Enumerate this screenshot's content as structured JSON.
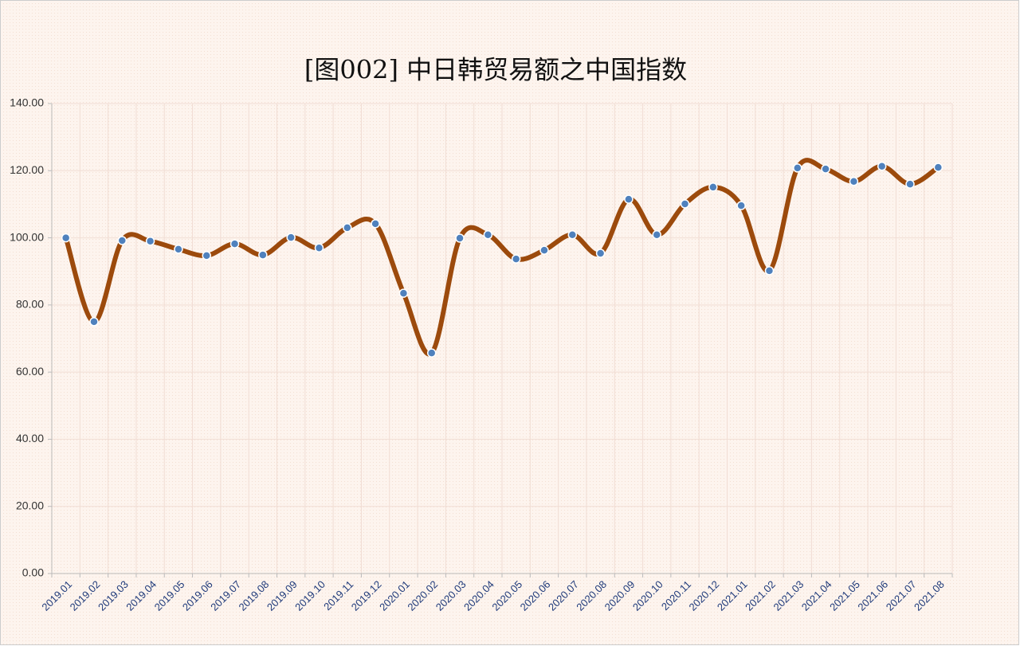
{
  "chart_data": {
    "type": "line",
    "title": "[图002] 中日韩贸易额之中国指数",
    "categories": [
      "2019.01",
      "2019.02",
      "2019.03",
      "2019.04",
      "2019.05",
      "2019.06",
      "2019.07",
      "2019.08",
      "2019.09",
      "2019.10",
      "2019.11",
      "2019.12",
      "2020.01",
      "2020.02",
      "2020.03",
      "2020.04",
      "2020.05",
      "2020.06",
      "2020.07",
      "2020.08",
      "2020.09",
      "2020.10",
      "2020.11",
      "2020.12",
      "2021.01",
      "2021.02",
      "2021.03",
      "2021.04",
      "2021.05",
      "2021.06",
      "2021.07",
      "2021.08"
    ],
    "values": [
      100,
      75,
      99.2,
      99,
      96.6,
      94.7,
      98.2,
      94.9,
      100.1,
      97,
      103,
      104.2,
      83.5,
      65.7,
      99.9,
      100.9,
      93.7,
      96.3,
      100.9,
      95.4,
      111.5,
      100.9,
      110.1,
      115.1,
      109.6,
      90.2,
      120.8,
      120.5,
      116.8,
      121.3,
      116,
      121
    ],
    "color": "#9c4a0c",
    "marker_color": "#4f81bd",
    "ylim": [
      0,
      140
    ],
    "yticks": [
      {
        "value": 0,
        "label": "0.00"
      },
      {
        "value": 20,
        "label": "20.00"
      },
      {
        "value": 40,
        "label": "40.00"
      },
      {
        "value": 60,
        "label": "60.00"
      },
      {
        "value": 80,
        "label": "80.00"
      },
      {
        "value": 100,
        "label": "100.00"
      },
      {
        "value": 120,
        "label": "120.00"
      },
      {
        "value": 140,
        "label": "140.00"
      }
    ],
    "grid": true,
    "smooth": true
  }
}
